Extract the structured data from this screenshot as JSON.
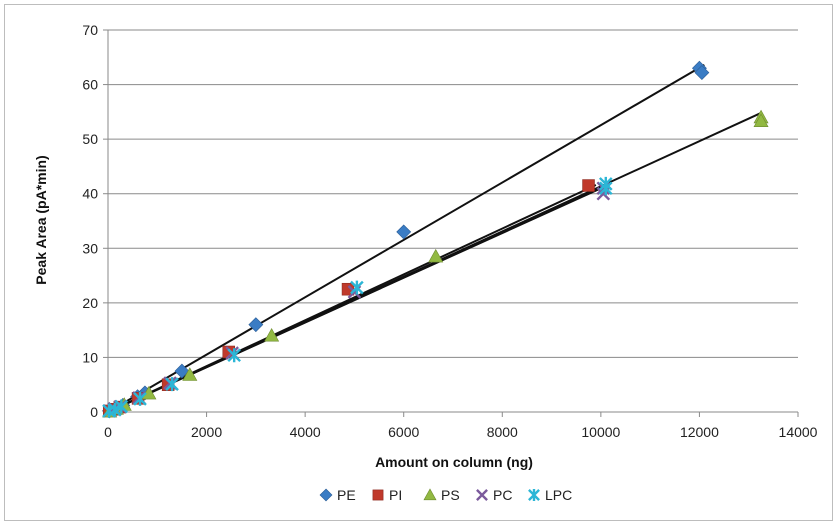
{
  "chart_data": {
    "type": "scatter",
    "xlabel": "Amount on column (ng)",
    "ylabel": "Peak Area (pA*min)",
    "xlim": [
      0,
      14000
    ],
    "ylim": [
      0,
      70
    ],
    "x_ticks": [
      "0",
      "2000",
      "4000",
      "6000",
      "8000",
      "10000",
      "12000",
      "14000"
    ],
    "y_ticks": [
      "0",
      "10",
      "20",
      "30",
      "40",
      "50",
      "60",
      "70"
    ],
    "grid": "horizontal",
    "legend_position": "bottom",
    "series": [
      {
        "name": "PE",
        "color": "#3A7CC4",
        "marker": "diamond",
        "points": [
          [
            30,
            0.2
          ],
          [
            150,
            0.5
          ],
          [
            300,
            1.2
          ],
          [
            600,
            2.8
          ],
          [
            750,
            3.5
          ],
          [
            1500,
            7.5
          ],
          [
            3000,
            16.0
          ],
          [
            6000,
            33.0
          ],
          [
            12000,
            63.0
          ],
          [
            12050,
            62.2
          ]
        ],
        "trendline": [
          [
            0,
            0
          ],
          [
            12100,
            63.6
          ]
        ]
      },
      {
        "name": "PI",
        "color": "#C0392B",
        "marker": "square",
        "points": [
          [
            25,
            0.2
          ],
          [
            120,
            0.5
          ],
          [
            240,
            0.9
          ],
          [
            610,
            2.5
          ],
          [
            1220,
            5.0
          ],
          [
            2450,
            11.0
          ],
          [
            4870,
            22.5
          ],
          [
            9750,
            41.5
          ]
        ],
        "trendline": [
          [
            0,
            0
          ],
          [
            9900,
            41.6
          ]
        ]
      },
      {
        "name": "PS",
        "color": "#92B942",
        "marker": "triangle",
        "points": [
          [
            35,
            0.1
          ],
          [
            170,
            0.6
          ],
          [
            330,
            1.3
          ],
          [
            830,
            3.4
          ],
          [
            1660,
            6.8
          ],
          [
            3320,
            14.0
          ],
          [
            6650,
            28.5
          ],
          [
            13250,
            54.0
          ],
          [
            13250,
            53.3
          ]
        ],
        "trendline": [
          [
            0,
            0
          ],
          [
            13250,
            54.8
          ]
        ]
      },
      {
        "name": "PC",
        "color": "#7B5A9C",
        "marker": "x",
        "points": [
          [
            25,
            0.2
          ],
          [
            130,
            0.6
          ],
          [
            250,
            1.0
          ],
          [
            630,
            2.6
          ],
          [
            1260,
            5.3
          ],
          [
            2520,
            10.8
          ],
          [
            5000,
            22.0
          ],
          [
            10050,
            40.0
          ],
          [
            10050,
            41.0
          ]
        ],
        "trendline": [
          [
            0,
            0
          ],
          [
            10050,
            41.2
          ]
        ]
      },
      {
        "name": "LPC",
        "color": "#2CB6D6",
        "marker": "asterisk",
        "points": [
          [
            20,
            0.2
          ],
          [
            140,
            0.4
          ],
          [
            270,
            1.0
          ],
          [
            650,
            2.4
          ],
          [
            1300,
            5.1
          ],
          [
            2560,
            10.4
          ],
          [
            5050,
            22.8
          ],
          [
            10100,
            41.0
          ],
          [
            10100,
            41.8
          ]
        ],
        "trendline": [
          [
            0,
            0
          ],
          [
            10100,
            41.5
          ]
        ]
      }
    ]
  }
}
